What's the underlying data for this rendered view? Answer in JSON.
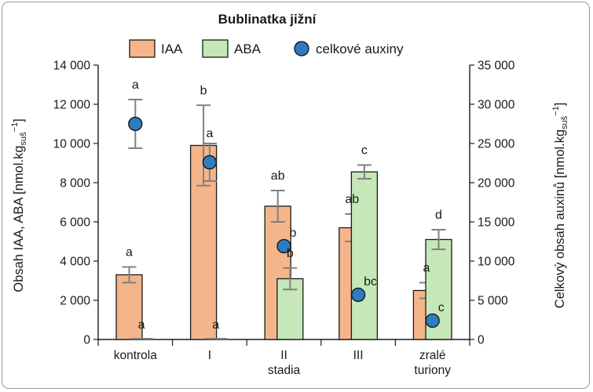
{
  "colors": {
    "iaa_fill": "#f5b58b",
    "iaa_stroke": "#1a1a1a",
    "aba_fill": "#c6e7b8",
    "aba_stroke": "#1a1a1a",
    "aux_fill": "#2e7bc0",
    "aux_stroke": "#111111",
    "error": "#808080"
  },
  "legend": {
    "iaa": "IAA",
    "aba": "ABA",
    "aux": "celkové auxiny"
  },
  "chart_data": {
    "type": "bar",
    "title": "Bublinatka jižní",
    "categories": [
      [
        "kontrola"
      ],
      [
        "I"
      ],
      [
        "II",
        "stadia"
      ],
      [
        "III"
      ],
      [
        "zralé",
        "turiony"
      ]
    ],
    "ylabel_left": "Obsah IAA, ABA [nmol.kg",
    "ylabel_left_sub": "suš",
    "ylabel_left_sup": "−1",
    "ylabel_left_end": "]",
    "ylabel_right": "Celkový obsah auxinů [nmol.kg",
    "ylabel_right_sub": "suš",
    "ylabel_right_sup": "−1",
    "ylabel_right_end": "]",
    "ylim_left": [
      0,
      14000
    ],
    "ylim_right": [
      0,
      35000
    ],
    "yticks_left": [
      "0",
      "2 000",
      "4 000",
      "6 000",
      "8 000",
      "10 000",
      "12 000",
      "14 000"
    ],
    "yticks_right": [
      "0",
      "5 000",
      "10 000",
      "15 000",
      "20 000",
      "25 000",
      "30 000",
      "35 000"
    ],
    "legend_position": "top",
    "grid": false,
    "series": [
      {
        "name": "IAA",
        "axis": "left",
        "kind": "bar",
        "values": [
          3300,
          9900,
          6800,
          5700,
          2500
        ],
        "errors": [
          400,
          2050,
          800,
          700,
          400
        ],
        "letters": [
          "a",
          "b",
          "ab",
          "ab",
          "a"
        ]
      },
      {
        "name": "ABA",
        "axis": "left",
        "kind": "bar",
        "values": [
          0,
          0,
          3100,
          8550,
          5100
        ],
        "errors": [
          0,
          0,
          550,
          350,
          500
        ],
        "letters": [
          "a",
          "a",
          "b",
          "c",
          "d"
        ]
      },
      {
        "name": "celkové auxiny",
        "axis": "right",
        "kind": "point",
        "values": [
          27500,
          22600,
          11900,
          5700,
          2400
        ],
        "errors": [
          3100,
          2400,
          0,
          0,
          0
        ],
        "letters": [
          "a",
          "a",
          "b",
          "bc",
          "c"
        ]
      }
    ]
  }
}
